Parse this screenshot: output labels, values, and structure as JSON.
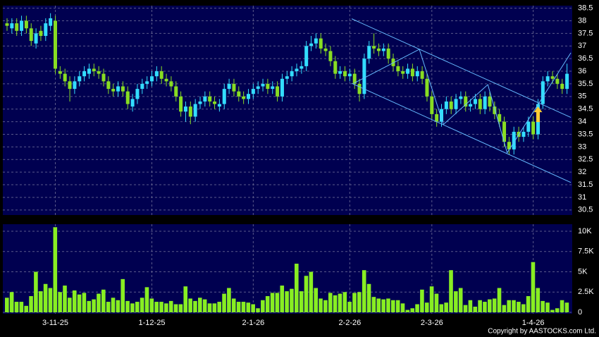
{
  "chart_data": {
    "type": "candlestick",
    "up_color": "#33ddff",
    "down_color": "#88dd22",
    "grid": true,
    "categories": [
      null,
      null,
      null,
      null,
      null,
      null,
      null,
      null,
      null,
      null,
      "3-11-25",
      null,
      null,
      null,
      null,
      null,
      null,
      null,
      null,
      null,
      null,
      null,
      null,
      null,
      null,
      null,
      null,
      null,
      null,
      null,
      "1-12-25",
      null,
      null,
      null,
      null,
      null,
      null,
      null,
      null,
      null,
      null,
      null,
      null,
      null,
      null,
      null,
      null,
      null,
      null,
      null,
      null,
      "2-1-26",
      null,
      null,
      null,
      null,
      null,
      null,
      null,
      null,
      null,
      null,
      null,
      null,
      null,
      null,
      null,
      null,
      null,
      null,
      null,
      "2-2-26",
      null,
      null,
      null,
      null,
      null,
      null,
      null,
      null,
      null,
      null,
      null,
      null,
      null,
      null,
      null,
      null,
      "2-3-26",
      null,
      null,
      null,
      null,
      null,
      null,
      null,
      null,
      null,
      null,
      null,
      null,
      null,
      null,
      null,
      null,
      null,
      null,
      null,
      null,
      "1-4-26",
      null,
      null,
      null,
      null,
      null,
      null,
      null
    ],
    "open": [
      37.9,
      37.7,
      37.9,
      37.6,
      38.0,
      37.7,
      37.1,
      37.6,
      37.4,
      37.8,
      38.0,
      36.0,
      35.9,
      35.6,
      35.3,
      35.6,
      35.8,
      35.9,
      36.1,
      36.0,
      35.9,
      35.6,
      35.3,
      35.2,
      35.4,
      35.2,
      34.6,
      34.9,
      35.3,
      35.5,
      35.6,
      35.8,
      36.0,
      35.7,
      35.6,
      35.4,
      35.0,
      34.4,
      34.6,
      34.2,
      34.7,
      34.8,
      35.0,
      34.8,
      34.6,
      34.7,
      35.3,
      35.5,
      35.2,
      35.0,
      34.9,
      35.1,
      35.3,
      35.4,
      35.5,
      35.3,
      35.4,
      35.0,
      35.7,
      35.8,
      36.0,
      36.1,
      36.2,
      37.0,
      37.1,
      37.3,
      36.9,
      36.8,
      36.4,
      35.9,
      36.0,
      35.8,
      35.9,
      35.5,
      35.1,
      36.5,
      37.0,
      36.9,
      36.8,
      36.9,
      36.5,
      36.2,
      36.0,
      35.9,
      36.1,
      35.8,
      36.0,
      35.7,
      35.0,
      34.3,
      34.0,
      34.5,
      34.8,
      34.5,
      34.9,
      35.0,
      34.6,
      34.7,
      34.9,
      34.5,
      35.0,
      34.6,
      34.3,
      34.0,
      33.2,
      32.9,
      33.6,
      33.4,
      33.6,
      34.0,
      33.5,
      34.7,
      35.6,
      35.8,
      35.7,
      35.5,
      35.3
    ],
    "high": [
      38.1,
      38.1,
      38.1,
      38.2,
      38.2,
      37.9,
      37.7,
      37.8,
      38.1,
      38.3,
      38.2,
      36.2,
      36.1,
      35.8,
      35.8,
      36.0,
      36.2,
      36.3,
      36.3,
      36.2,
      36.1,
      35.8,
      35.5,
      35.6,
      35.6,
      35.4,
      35.1,
      35.5,
      35.7,
      35.8,
      36.0,
      36.2,
      36.2,
      35.9,
      35.8,
      35.6,
      35.2,
      34.8,
      34.8,
      34.9,
      35.0,
      35.2,
      35.2,
      35.0,
      34.9,
      35.5,
      35.7,
      35.7,
      35.4,
      35.2,
      35.3,
      35.5,
      35.6,
      35.7,
      35.7,
      35.6,
      35.6,
      35.9,
      36.0,
      36.2,
      36.3,
      36.4,
      37.2,
      37.4,
      37.5,
      37.5,
      37.1,
      37.0,
      36.6,
      36.2,
      36.2,
      36.1,
      36.1,
      35.7,
      36.7,
      37.2,
      37.5,
      37.1,
      37.1,
      37.1,
      36.7,
      36.4,
      36.2,
      36.3,
      36.3,
      36.2,
      36.2,
      35.9,
      35.2,
      34.5,
      34.7,
      35.0,
      35.0,
      35.1,
      35.2,
      35.2,
      34.9,
      35.1,
      35.1,
      35.2,
      35.2,
      34.8,
      34.5,
      34.2,
      33.4,
      33.8,
      33.8,
      33.8,
      34.2,
      34.2,
      34.9,
      35.8,
      36.0,
      36.0,
      35.9,
      35.7,
      36.3
    ],
    "low": [
      37.6,
      37.5,
      37.4,
      37.4,
      37.5,
      37.0,
      36.9,
      37.2,
      37.2,
      37.6,
      35.9,
      35.7,
      35.4,
      34.8,
      35.1,
      35.4,
      35.6,
      35.7,
      35.8,
      35.7,
      35.4,
      35.1,
      35.0,
      35.0,
      35.0,
      34.5,
      34.4,
      34.7,
      35.1,
      35.3,
      35.4,
      35.6,
      35.5,
      35.4,
      35.2,
      34.8,
      34.2,
      34.0,
      33.9,
      34.0,
      34.5,
      34.6,
      34.6,
      34.5,
      34.4,
      34.5,
      35.1,
      35.0,
      34.8,
      34.7,
      34.7,
      34.9,
      35.1,
      35.2,
      35.1,
      35.1,
      34.8,
      34.8,
      35.5,
      35.6,
      35.8,
      35.9,
      36.0,
      36.8,
      36.9,
      36.7,
      36.6,
      36.2,
      35.7,
      35.7,
      35.6,
      35.6,
      35.3,
      34.8,
      34.9,
      36.3,
      36.7,
      36.6,
      36.6,
      36.3,
      36.0,
      35.8,
      35.7,
      35.7,
      35.6,
      35.6,
      35.5,
      34.8,
      34.1,
      33.8,
      33.8,
      34.3,
      34.3,
      34.3,
      34.7,
      34.4,
      34.4,
      34.5,
      34.3,
      34.3,
      34.4,
      34.1,
      33.8,
      33.0,
      32.7,
      32.7,
      33.2,
      33.2,
      33.4,
      33.3,
      33.3,
      34.5,
      35.4,
      35.5,
      35.3,
      35.1,
      35.1
    ],
    "close": [
      37.8,
      37.9,
      37.6,
      38.0,
      37.7,
      37.2,
      37.5,
      37.4,
      37.9,
      38.1,
      36.1,
      35.9,
      35.6,
      35.3,
      35.6,
      35.8,
      36.0,
      36.1,
      36.0,
      35.9,
      35.6,
      35.3,
      35.2,
      35.4,
      35.2,
      34.7,
      34.9,
      35.3,
      35.5,
      35.6,
      35.8,
      36.0,
      35.7,
      35.6,
      35.4,
      35.0,
      34.4,
      34.6,
      34.2,
      34.7,
      34.8,
      35.0,
      34.8,
      34.7,
      34.7,
      35.3,
      35.5,
      35.2,
      35.0,
      34.9,
      35.1,
      35.3,
      35.4,
      35.5,
      35.3,
      35.4,
      35.0,
      35.7,
      35.8,
      36.0,
      36.1,
      36.2,
      37.0,
      37.1,
      37.3,
      36.9,
      36.8,
      36.4,
      35.9,
      36.0,
      35.8,
      35.9,
      35.5,
      35.1,
      36.5,
      37.0,
      36.9,
      36.8,
      36.9,
      36.5,
      36.2,
      36.0,
      35.9,
      36.1,
      35.8,
      36.0,
      35.7,
      35.0,
      34.3,
      34.0,
      34.5,
      34.8,
      34.5,
      34.9,
      35.0,
      34.6,
      34.7,
      34.9,
      34.5,
      35.0,
      34.6,
      34.3,
      34.0,
      33.2,
      32.9,
      33.6,
      33.4,
      33.6,
      34.0,
      33.5,
      34.7,
      35.6,
      35.8,
      35.7,
      35.5,
      35.3,
      35.9
    ],
    "ylim": [
      30.3,
      38.6
    ],
    "yticks": [
      30.5,
      31,
      31.5,
      32,
      32.5,
      33,
      33.5,
      34,
      34.5,
      35,
      35.5,
      36,
      36.5,
      37,
      37.5,
      38,
      38.5
    ],
    "trend_lines": [
      {
        "color": "#66bbff",
        "x": [
          71.4,
          116.8
        ],
        "y": [
          38.08,
          34.17
        ]
      },
      {
        "color": "#66bbff",
        "x": [
          71.4,
          116.8
        ],
        "y": [
          35.52,
          31.59
        ]
      },
      {
        "color": "#66bbff",
        "x": [
          71.8,
          85.4,
          90.4,
          99.6,
          103.6,
          109.8,
          116.8
        ],
        "y": [
          35.52,
          36.87,
          33.89,
          35.47,
          32.77,
          34.62,
          36.73
        ]
      }
    ],
    "arrow": {
      "x": 110,
      "y": 34.6,
      "color": "#ffcc33"
    },
    "volume": {
      "type": "bar",
      "color": "#88ee22",
      "values": [
        1800,
        2500,
        1300,
        1300,
        800,
        2000,
        5000,
        2600,
        3500,
        3000,
        10500,
        2500,
        3300,
        1800,
        2700,
        2200,
        2400,
        1400,
        1600,
        2300,
        2800,
        1300,
        1800,
        1500,
        4100,
        1400,
        1100,
        1300,
        1800,
        3100,
        1700,
        1300,
        1300,
        1100,
        1400,
        1000,
        1000,
        3200,
        1700,
        1400,
        1800,
        1600,
        1100,
        1100,
        1300,
        2300,
        3000,
        1700,
        1300,
        1300,
        1200,
        1000,
        500,
        1500,
        2000,
        2400,
        2400,
        3300,
        2600,
        2900,
        6000,
        2600,
        4500,
        5000,
        3000,
        1700,
        1500,
        2400,
        2100,
        2300,
        2500,
        1300,
        2400,
        2500,
        5200,
        3500,
        1900,
        1700,
        1600,
        1700,
        1500,
        1500,
        1100,
        300,
        500,
        1000,
        2800,
        1200,
        3200,
        2300,
        1000,
        1200,
        5200,
        2600,
        3000,
        900,
        1500,
        700,
        1500,
        1300,
        1600,
        1700,
        3000,
        900,
        1500,
        1500,
        1300,
        1000,
        2000,
        6200,
        3000,
        1400,
        1200,
        300,
        500,
        1500,
        1200
      ],
      "ylim": [
        0,
        10870
      ],
      "yticks": [
        0,
        {
          "value": 2500,
          "label": "2.5K"
        },
        {
          "value": 5000,
          "label": "5K"
        },
        {
          "value": 7500,
          "label": "7.5K"
        },
        {
          "value": 10000,
          "label": "10K"
        }
      ]
    }
  },
  "footer": "Copyright by AASTOCKS.com Ltd."
}
